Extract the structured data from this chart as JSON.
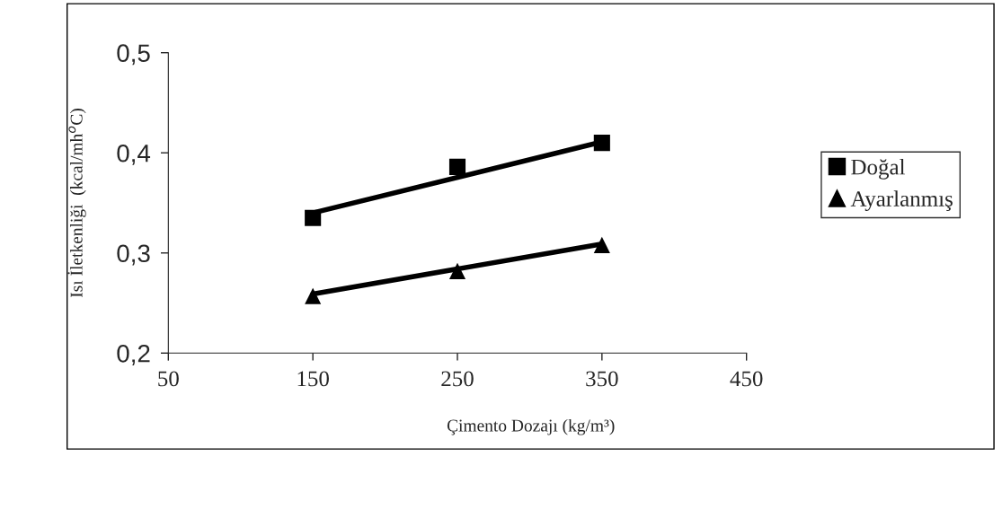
{
  "chart_data": {
    "type": "scatter",
    "xlabel": "Çimento Dozajı (kg/m³)",
    "ylabel": "Isı İletkenliği  (kcal/mh$^{o}$C)",
    "series": [
      {
        "name": "Doğal",
        "color": "#000000",
        "marker": "square",
        "x": [
          150,
          250,
          350
        ],
        "values": [
          0.335,
          0.386,
          0.41
        ]
      },
      {
        "name": "Ayarlanmış",
        "color": "#000000",
        "marker": "triangle",
        "x": [
          150,
          250,
          350
        ],
        "values": [
          0.257,
          0.282,
          0.308
        ]
      },
      {
        "type": "line",
        "color": "#000000",
        "x": [
          150,
          350
        ],
        "values": [
          0.34,
          0.411
        ]
      },
      {
        "type": "line",
        "color": "#000000",
        "x": [
          150,
          350
        ],
        "values": [
          0.259,
          0.309
        ]
      }
    ],
    "xlim": [
      50,
      450
    ],
    "xticks": [
      50,
      150,
      250,
      350,
      450
    ],
    "ylim": [
      0.2,
      0.5
    ],
    "yticks": [
      {
        "value": 0.2,
        "label": "0,2"
      },
      {
        "value": 0.3,
        "label": "0,3"
      },
      {
        "value": 0.4,
        "label": "0,4"
      },
      {
        "value": 0.5,
        "label": "0,5"
      }
    ],
    "grid": false,
    "legend": "right"
  }
}
